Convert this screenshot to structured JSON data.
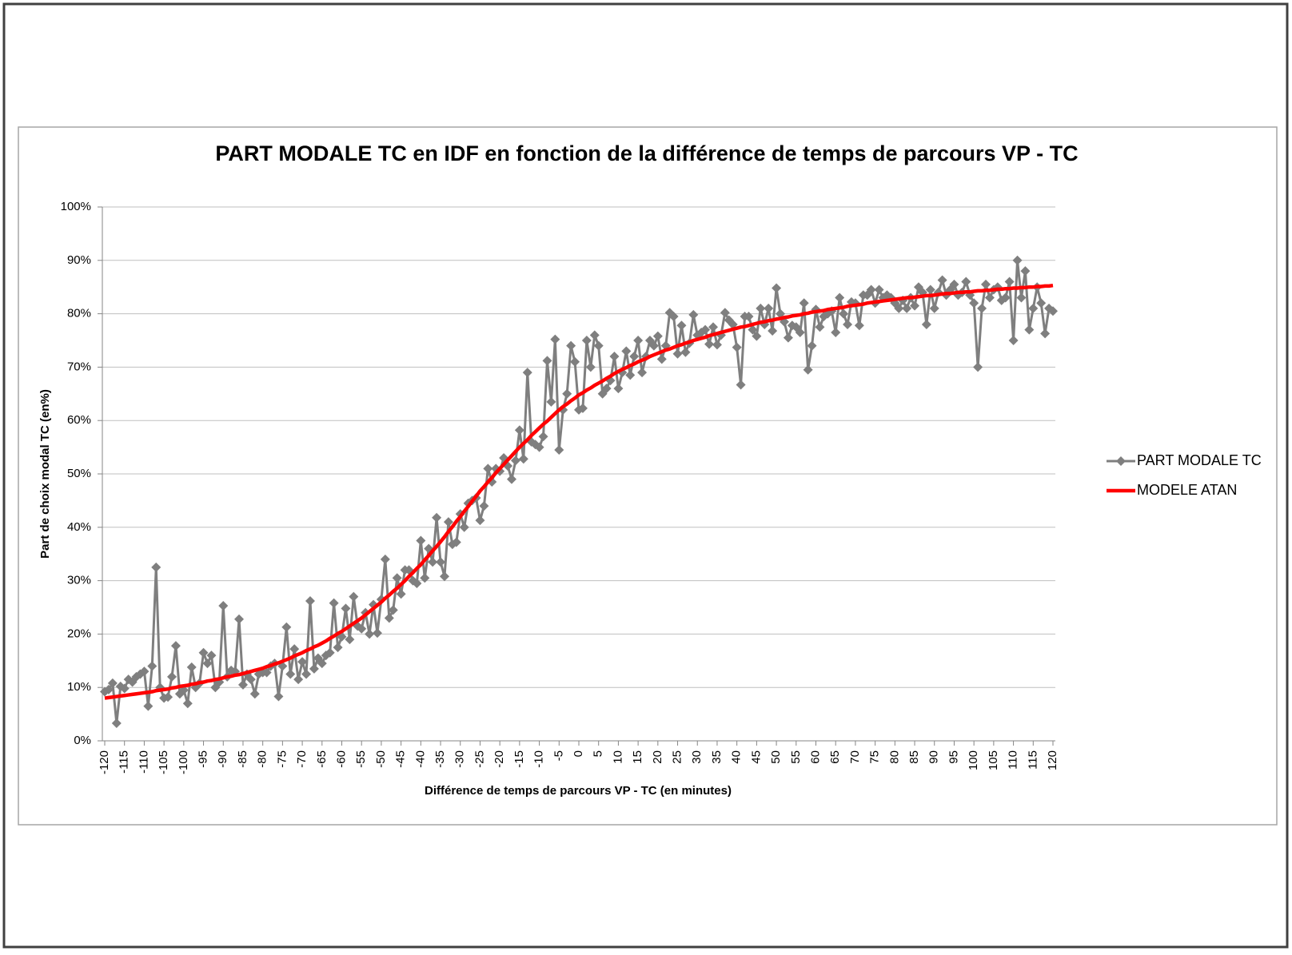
{
  "chart_data": {
    "type": "line",
    "title": "PART MODALE TC en IDF en fonction de la différence de temps de parcours VP - TC",
    "xlabel": "Différence de temps de parcours VP - TC (en minutes)",
    "ylabel": "Part de choix modal TC (en%)",
    "x": [
      -120,
      -119,
      -118,
      -117,
      -116,
      -115,
      -114,
      -113,
      -112,
      -111,
      -110,
      -109,
      -108,
      -107,
      -106,
      -105,
      -104,
      -103,
      -102,
      -101,
      -100,
      -99,
      -98,
      -97,
      -96,
      -95,
      -94,
      -93,
      -92,
      -91,
      -90,
      -89,
      -88,
      -87,
      -86,
      -85,
      -84,
      -83,
      -82,
      -81,
      -80,
      -79,
      -78,
      -77,
      -76,
      -75,
      -74,
      -73,
      -72,
      -71,
      -70,
      -69,
      -68,
      -67,
      -66,
      -65,
      -64,
      -63,
      -62,
      -61,
      -60,
      -59,
      -58,
      -57,
      -56,
      -55,
      -54,
      -53,
      -52,
      -51,
      -50,
      -49,
      -48,
      -47,
      -46,
      -45,
      -44,
      -43,
      -42,
      -41,
      -40,
      -39,
      -38,
      -37,
      -36,
      -35,
      -34,
      -33,
      -32,
      -31,
      -30,
      -29,
      -28,
      -27,
      -26,
      -25,
      -24,
      -23,
      -22,
      -21,
      -20,
      -19,
      -18,
      -17,
      -16,
      -15,
      -14,
      -13,
      -12,
      -11,
      -10,
      -9,
      -8,
      -7,
      -6,
      -5,
      -4,
      -3,
      -2,
      -1,
      0,
      1,
      2,
      3,
      4,
      5,
      6,
      7,
      8,
      9,
      10,
      11,
      12,
      13,
      14,
      15,
      16,
      17,
      18,
      19,
      20,
      21,
      22,
      23,
      24,
      25,
      26,
      27,
      28,
      29,
      30,
      31,
      32,
      33,
      34,
      35,
      36,
      37,
      38,
      39,
      40,
      41,
      42,
      43,
      44,
      45,
      46,
      47,
      48,
      49,
      50,
      51,
      52,
      53,
      54,
      55,
      56,
      57,
      58,
      59,
      60,
      61,
      62,
      63,
      64,
      65,
      66,
      67,
      68,
      69,
      70,
      71,
      72,
      73,
      74,
      75,
      76,
      77,
      78,
      79,
      80,
      81,
      82,
      83,
      84,
      85,
      86,
      87,
      88,
      89,
      90,
      91,
      92,
      93,
      94,
      95,
      96,
      97,
      98,
      99,
      100,
      101,
      102,
      103,
      104,
      105,
      106,
      107,
      108,
      109,
      110,
      111,
      112,
      113,
      114,
      115,
      116,
      117,
      118,
      119,
      120
    ],
    "series": [
      {
        "name": "PART MODALE TC",
        "color": "#7f7f7f",
        "marker": "diamond",
        "values": [
          9.2,
          9.6,
          10.8,
          3.3,
          10.2,
          9.8,
          11.5,
          11,
          12,
          12.5,
          13,
          6.5,
          14,
          32.5,
          10,
          8,
          8.2,
          12,
          17.8,
          8.8,
          9.5,
          7,
          13.8,
          10,
          10.8,
          16.5,
          14.5,
          16,
          10,
          11,
          25.3,
          12,
          13.2,
          13,
          22.8,
          10.5,
          12.5,
          11.5,
          8.8,
          12.5,
          12.8,
          12.8,
          14,
          14.5,
          8.3,
          14,
          21.3,
          12.5,
          17.2,
          11.5,
          14.8,
          12.5,
          26.2,
          13.5,
          15.5,
          14.5,
          16,
          16.5,
          25.8,
          17.5,
          19.5,
          24.8,
          19,
          27,
          21.5,
          21,
          24,
          20,
          25.5,
          20.2,
          26.5,
          34,
          23,
          24.5,
          30.5,
          27.5,
          32,
          32,
          30,
          29.5,
          37.5,
          30.5,
          36,
          33.5,
          41.8,
          33.5,
          30.8,
          41,
          36.8,
          37.2,
          42.5,
          40,
          44.5,
          45,
          45.5,
          41.3,
          44,
          51,
          48.5,
          51,
          50.5,
          53,
          51.5,
          49,
          52.5,
          58.2,
          52.8,
          69,
          56,
          55.5,
          55,
          57,
          71.2,
          63.5,
          75.2,
          54.5,
          62,
          65,
          74,
          71,
          62,
          62.3,
          75,
          70,
          76,
          74,
          65,
          66,
          67.5,
          72,
          66,
          69,
          73,
          68.5,
          72,
          75,
          69,
          72,
          75,
          74,
          75.8,
          71.5,
          74,
          80.2,
          79.5,
          72.5,
          77.8,
          72.8,
          74.5,
          79.8,
          76,
          76.5,
          77,
          74.3,
          77.5,
          74.2,
          76,
          80.2,
          78.8,
          78,
          73.7,
          66.7,
          79.5,
          79.5,
          77,
          75.8,
          81,
          78,
          81,
          76.8,
          84.8,
          80,
          78.5,
          75.5,
          77.8,
          77.5,
          76.5,
          82,
          69.5,
          74,
          80.8,
          77.5,
          79.5,
          80,
          80.5,
          76.5,
          83,
          80,
          78,
          82.2,
          82,
          77.8,
          83.5,
          83.5,
          84.5,
          82,
          84.5,
          83,
          83.5,
          83,
          82,
          81,
          82.5,
          81,
          83,
          81.5,
          85,
          84,
          78,
          84.5,
          81,
          84,
          86.3,
          83.5,
          84.5,
          85.5,
          83.5,
          84,
          86,
          83.5,
          82,
          70,
          81,
          85.5,
          83,
          84.5,
          85,
          82.5,
          83,
          86,
          75,
          90,
          83,
          88,
          77,
          81,
          85,
          82,
          76.3,
          81,
          80.5
        ]
      },
      {
        "name": "MODELE ATAN",
        "color": "#ff0000",
        "marker": "none",
        "values": [
          8.0,
          8.1,
          8.2,
          8.3,
          8.4,
          8.5,
          8.6,
          8.7,
          8.8,
          8.9,
          9.0,
          9.1,
          9.2,
          9.4,
          9.5,
          9.6,
          9.7,
          9.9,
          10.0,
          10.2,
          10.3,
          10.4,
          10.6,
          10.7,
          10.9,
          11.0,
          11.2,
          11.3,
          11.5,
          11.6,
          11.8,
          12.0,
          12.1,
          12.3,
          12.4,
          12.6,
          12.8,
          13.0,
          13.2,
          13.4,
          13.6,
          13.9,
          14.1,
          14.4,
          14.6,
          14.9,
          15.2,
          15.5,
          15.9,
          16.2,
          16.5,
          16.9,
          17.2,
          17.6,
          17.9,
          18.3,
          18.7,
          19.2,
          19.6,
          20.1,
          20.5,
          21.0,
          21.5,
          22.0,
          22.5,
          23.0,
          23.6,
          24.2,
          24.8,
          25.4,
          26.0,
          26.7,
          27.3,
          28.0,
          28.6,
          29.3,
          30.0,
          30.8,
          31.5,
          32.3,
          33.0,
          33.9,
          34.7,
          35.6,
          36.4,
          37.3,
          38.2,
          39.2,
          40.1,
          41.1,
          42.0,
          43.0,
          43.9,
          44.9,
          45.8,
          46.8,
          47.6,
          48.5,
          49.3,
          50.2,
          51.0,
          51.8,
          52.6,
          53.4,
          54.2,
          55.0,
          55.7,
          56.4,
          57.2,
          57.9,
          58.6,
          59.3,
          59.9,
          60.6,
          61.3,
          62.0,
          62.6,
          63.1,
          63.7,
          64.2,
          64.8,
          65.2,
          65.7,
          66.1,
          66.6,
          67.0,
          67.4,
          67.9,
          68.3,
          68.8,
          69.2,
          69.6,
          69.9,
          70.3,
          70.6,
          71.0,
          71.3,
          71.6,
          72.0,
          72.3,
          72.6,
          72.9,
          73.2,
          73.4,
          73.7,
          74.0,
          74.2,
          74.5,
          74.7,
          75.0,
          75.2,
          75.4,
          75.6,
          75.9,
          76.1,
          76.3,
          76.5,
          76.7,
          76.9,
          77.1,
          77.3,
          77.5,
          77.6,
          77.8,
          78.0,
          78.2,
          78.4,
          78.5,
          78.7,
          78.8,
          79.0,
          79.1,
          79.3,
          79.4,
          79.6,
          79.7,
          79.8,
          80.0,
          80.1,
          80.3,
          80.4,
          80.5,
          80.6,
          80.8,
          80.9,
          81.0,
          81.1,
          81.2,
          81.4,
          81.5,
          81.6,
          81.7,
          81.8,
          82.0,
          82.1,
          82.2,
          82.3,
          82.4,
          82.5,
          82.6,
          82.7,
          82.8,
          82.9,
          83.0,
          83.0,
          83.1,
          83.2,
          83.3,
          83.4,
          83.4,
          83.5,
          83.6,
          83.7,
          83.8,
          83.8,
          83.9,
          84.0,
          84.0,
          84.1,
          84.1,
          84.2,
          84.3,
          84.3,
          84.4,
          84.4,
          84.5,
          84.6,
          84.6,
          84.7,
          84.7,
          84.8,
          84.8,
          84.9,
          84.9,
          85.0,
          85.0,
          85.1,
          85.1,
          85.2,
          85.2,
          85.3
        ]
      }
    ],
    "xlim": [
      -120,
      120
    ],
    "xticks": [
      -120,
      -115,
      -110,
      -105,
      -100,
      -95,
      -90,
      -85,
      -80,
      -75,
      -70,
      -65,
      -60,
      -55,
      -50,
      -45,
      -40,
      -35,
      -30,
      -25,
      -20,
      -15,
      -10,
      -5,
      0,
      5,
      10,
      15,
      20,
      25,
      30,
      35,
      40,
      45,
      50,
      55,
      60,
      65,
      70,
      75,
      80,
      85,
      90,
      95,
      100,
      105,
      110,
      115,
      120
    ],
    "ylim": [
      0,
      100
    ],
    "yticks": [
      {
        "value": 0,
        "label": "0%"
      },
      {
        "value": 10,
        "label": "10%"
      },
      {
        "value": 20,
        "label": "20%"
      },
      {
        "value": 30,
        "label": "30%"
      },
      {
        "value": 40,
        "label": "40%"
      },
      {
        "value": 50,
        "label": "50%"
      },
      {
        "value": 60,
        "label": "60%"
      },
      {
        "value": 70,
        "label": "70%"
      },
      {
        "value": 80,
        "label": "80%"
      },
      {
        "value": 90,
        "label": "90%"
      },
      {
        "value": 100,
        "label": "100%"
      }
    ],
    "grid": true,
    "legend": "right"
  }
}
